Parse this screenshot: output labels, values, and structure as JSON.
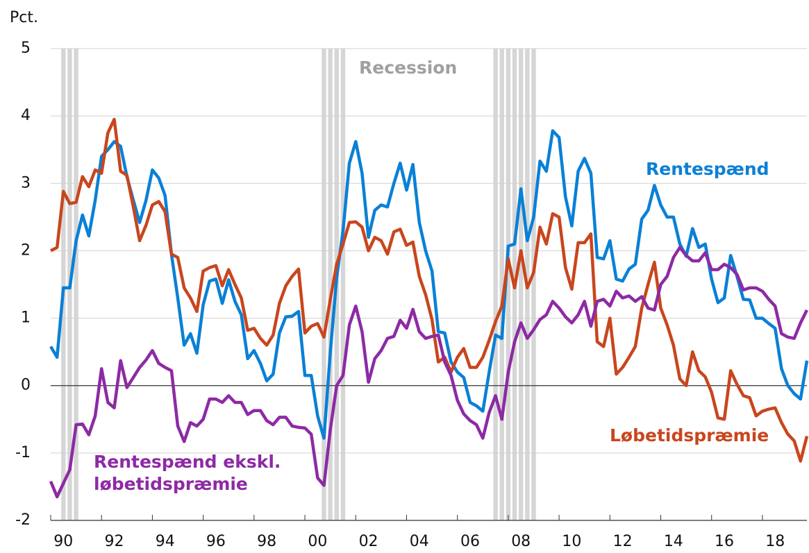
{
  "chart_data": {
    "type": "line",
    "y_label": "Pct.",
    "annotation": "Recession",
    "xlim": [
      1990,
      2019.75
    ],
    "ylim": [
      -2,
      5
    ],
    "yticks": [
      -2,
      -1,
      0,
      1,
      2,
      3,
      4,
      5
    ],
    "xticks": [
      {
        "value": 1990.5,
        "label": "90"
      },
      {
        "value": 1992.5,
        "label": "92"
      },
      {
        "value": 1994.5,
        "label": "94"
      },
      {
        "value": 1996.5,
        "label": "96"
      },
      {
        "value": 1998.5,
        "label": "98"
      },
      {
        "value": 2000.5,
        "label": "00"
      },
      {
        "value": 2002.5,
        "label": "02"
      },
      {
        "value": 2004.5,
        "label": "04"
      },
      {
        "value": 2006.5,
        "label": "06"
      },
      {
        "value": 2008.5,
        "label": "08"
      },
      {
        "value": 2010.5,
        "label": "10"
      },
      {
        "value": 2012.5,
        "label": "12"
      },
      {
        "value": 2014.5,
        "label": "14"
      },
      {
        "value": 2016.5,
        "label": "16"
      },
      {
        "value": 2018.5,
        "label": "18"
      }
    ],
    "grid": true,
    "recession_color": "#d6d6d6",
    "recession_quarters": [
      1990.5,
      1990.75,
      1991.0,
      2000.75,
      2001.0,
      2001.25,
      2001.5,
      2007.5,
      2007.75,
      2008.0,
      2008.25,
      2008.5,
      2008.75,
      2009.0
    ],
    "x": [
      1990,
      1990.25,
      1990.5,
      1990.75,
      1991,
      1991.25,
      1991.5,
      1991.75,
      1992,
      1992.25,
      1992.5,
      1992.75,
      1993,
      1993.25,
      1993.5,
      1993.75,
      1994,
      1994.25,
      1994.5,
      1994.75,
      1995,
      1995.25,
      1995.5,
      1995.75,
      1996,
      1996.25,
      1996.5,
      1996.75,
      1997,
      1997.25,
      1997.5,
      1997.75,
      1998,
      1998.25,
      1998.5,
      1998.75,
      1999,
      1999.25,
      1999.5,
      1999.75,
      2000,
      2000.25,
      2000.5,
      2000.75,
      2001,
      2001.25,
      2001.5,
      2001.75,
      2002,
      2002.25,
      2002.5,
      2002.75,
      2003,
      2003.25,
      2003.5,
      2003.75,
      2004,
      2004.25,
      2004.5,
      2004.75,
      2005,
      2005.25,
      2005.5,
      2005.75,
      2006,
      2006.25,
      2006.5,
      2006.75,
      2007,
      2007.25,
      2007.5,
      2007.75,
      2008,
      2008.25,
      2008.5,
      2008.75,
      2009,
      2009.25,
      2009.5,
      2009.75,
      2010,
      2010.25,
      2010.5,
      2010.75,
      2011,
      2011.25,
      2011.5,
      2011.75,
      2012,
      2012.25,
      2012.5,
      2012.75,
      2013,
      2013.25,
      2013.5,
      2013.75,
      2014,
      2014.25,
      2014.5,
      2014.75,
      2015,
      2015.25,
      2015.5,
      2015.75,
      2016,
      2016.25,
      2016.5,
      2016.75,
      2017,
      2017.25,
      2017.5,
      2017.75,
      2018,
      2018.25,
      2018.5,
      2018.75,
      2019,
      2019.25,
      2019.5,
      2019.75
    ],
    "series": [
      {
        "name": "Rentespænd",
        "color": "#0a80d6",
        "values": [
          0.58,
          0.42,
          1.45,
          1.45,
          2.15,
          2.53,
          2.22,
          2.75,
          3.4,
          3.5,
          3.62,
          3.55,
          3.1,
          2.75,
          2.42,
          2.75,
          3.2,
          3.08,
          2.82,
          1.95,
          1.3,
          0.6,
          0.77,
          0.48,
          1.2,
          1.55,
          1.58,
          1.22,
          1.57,
          1.25,
          1.05,
          0.4,
          0.52,
          0.33,
          0.07,
          0.17,
          0.78,
          1.02,
          1.03,
          1.1,
          0.15,
          0.15,
          -0.45,
          -0.78,
          0.5,
          1.6,
          2.3,
          3.3,
          3.62,
          3.15,
          2.2,
          2.6,
          2.68,
          2.65,
          3.0,
          3.3,
          2.9,
          3.28,
          2.42,
          2.0,
          1.7,
          0.8,
          0.78,
          0.35,
          0.2,
          0.12,
          -0.25,
          -0.3,
          -0.38,
          0.2,
          0.75,
          0.7,
          2.07,
          2.1,
          2.92,
          2.15,
          2.5,
          3.33,
          3.18,
          3.78,
          3.68,
          2.8,
          2.37,
          3.18,
          3.37,
          3.15,
          1.9,
          1.88,
          2.15,
          1.58,
          1.55,
          1.73,
          1.8,
          2.47,
          2.6,
          2.97,
          2.68,
          2.5,
          2.5,
          2.1,
          1.92,
          2.33,
          2.05,
          2.1,
          1.58,
          1.23,
          1.3,
          1.93,
          1.62,
          1.28,
          1.27,
          1.0,
          1.0,
          0.92,
          0.85,
          0.25,
          0.0,
          -0.12,
          -0.2,
          0.37
        ]
      },
      {
        "name": "Løbetidspræmie",
        "color": "#c8461e",
        "values": [
          2.0,
          2.05,
          2.88,
          2.7,
          2.72,
          3.1,
          2.95,
          3.2,
          3.15,
          3.75,
          3.95,
          3.18,
          3.12,
          2.65,
          2.15,
          2.38,
          2.68,
          2.73,
          2.58,
          1.95,
          1.9,
          1.45,
          1.3,
          1.1,
          1.7,
          1.75,
          1.78,
          1.48,
          1.72,
          1.5,
          1.3,
          0.82,
          0.85,
          0.7,
          0.6,
          0.75,
          1.22,
          1.48,
          1.62,
          1.73,
          0.78,
          0.88,
          0.92,
          0.72,
          1.28,
          1.8,
          2.1,
          2.42,
          2.43,
          2.35,
          2.0,
          2.2,
          2.15,
          1.95,
          2.28,
          2.32,
          2.08,
          2.13,
          1.62,
          1.35,
          0.98,
          0.35,
          0.42,
          0.2,
          0.42,
          0.55,
          0.27,
          0.27,
          0.42,
          0.67,
          0.95,
          1.18,
          1.88,
          1.45,
          2.0,
          1.45,
          1.68,
          2.35,
          2.1,
          2.55,
          2.5,
          1.75,
          1.43,
          2.12,
          2.12,
          2.25,
          0.65,
          0.58,
          1.0,
          0.17,
          0.27,
          0.42,
          0.58,
          1.15,
          1.5,
          1.83,
          1.15,
          0.9,
          0.6,
          0.1,
          0.0,
          0.5,
          0.22,
          0.13,
          -0.1,
          -0.48,
          -0.5,
          0.22,
          0.02,
          -0.15,
          -0.18,
          -0.45,
          -0.38,
          -0.35,
          -0.33,
          -0.55,
          -0.72,
          -0.82,
          -1.12,
          -0.75
        ]
      },
      {
        "name": "Rentespænd ekskl. løbetidspræmie",
        "color": "#8d2aa4",
        "values": [
          -1.42,
          -1.65,
          -1.45,
          -1.25,
          -0.58,
          -0.57,
          -0.73,
          -0.45,
          0.25,
          -0.25,
          -0.33,
          0.37,
          -0.03,
          0.12,
          0.27,
          0.38,
          0.52,
          0.33,
          0.27,
          0.22,
          -0.6,
          -0.83,
          -0.55,
          -0.6,
          -0.5,
          -0.2,
          -0.2,
          -0.25,
          -0.15,
          -0.25,
          -0.25,
          -0.43,
          -0.37,
          -0.37,
          -0.52,
          -0.58,
          -0.47,
          -0.47,
          -0.6,
          -0.62,
          -0.63,
          -0.72,
          -1.37,
          -1.48,
          -0.65,
          0.0,
          0.15,
          0.9,
          1.18,
          0.8,
          0.05,
          0.4,
          0.52,
          0.7,
          0.73,
          0.97,
          0.85,
          1.13,
          0.8,
          0.7,
          0.73,
          0.75,
          0.35,
          0.15,
          -0.22,
          -0.42,
          -0.52,
          -0.58,
          -0.78,
          -0.4,
          -0.15,
          -0.5,
          0.2,
          0.65,
          0.93,
          0.7,
          0.83,
          0.98,
          1.05,
          1.25,
          1.15,
          1.02,
          0.93,
          1.05,
          1.25,
          0.88,
          1.25,
          1.28,
          1.18,
          1.4,
          1.3,
          1.33,
          1.25,
          1.32,
          1.15,
          1.12,
          1.5,
          1.62,
          1.9,
          2.05,
          1.93,
          1.85,
          1.85,
          1.97,
          1.72,
          1.72,
          1.8,
          1.75,
          1.65,
          1.42,
          1.45,
          1.45,
          1.4,
          1.28,
          1.18,
          0.77,
          0.72,
          0.7,
          0.93,
          1.12
        ]
      }
    ]
  }
}
